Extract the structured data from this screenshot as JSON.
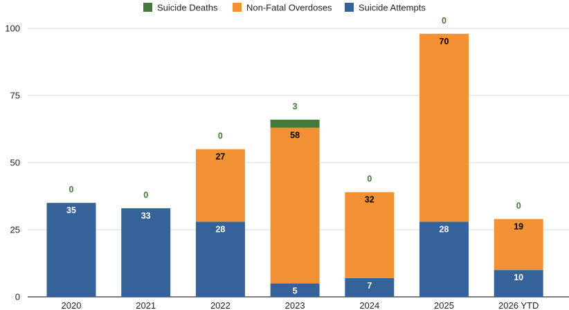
{
  "chart_data": {
    "type": "bar",
    "stacked": true,
    "categories": [
      "2020",
      "2021",
      "2022",
      "2023",
      "2024",
      "2025",
      "2026 YTD"
    ],
    "series": [
      {
        "name": "Suicide Attempts",
        "color": "#356298",
        "label_color": "#ffffff",
        "values": [
          35,
          33,
          28,
          5,
          7,
          28,
          10
        ]
      },
      {
        "name": "Non-Fatal Overdoses",
        "color": "#f39234",
        "label_color": "#000000",
        "values": [
          0,
          0,
          27,
          58,
          32,
          70,
          19
        ]
      },
      {
        "name": "Suicide Deaths",
        "color": "#447939",
        "label_color": "#447939",
        "values": [
          0,
          0,
          0,
          3,
          0,
          0,
          0
        ]
      }
    ],
    "legend_order": [
      "Suicide Deaths",
      "Non-Fatal Overdoses",
      "Suicide Attempts"
    ],
    "legend_position": "top",
    "ylim": [
      0,
      100
    ],
    "yticks": [
      0,
      25,
      50,
      75,
      100
    ],
    "grid": true
  }
}
